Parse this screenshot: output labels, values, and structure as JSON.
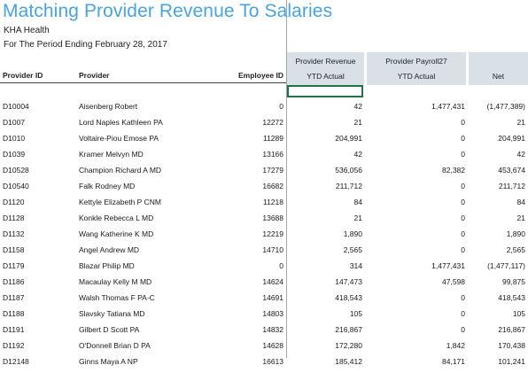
{
  "report": {
    "title": "Matching Provider Revenue To Salaries",
    "org": "KHA Health",
    "period": "For The Period Ending February 28, 2017"
  },
  "headers": {
    "provider_id": "Provider ID",
    "provider": "Provider",
    "employee_id": "Employee ID",
    "revenue_top": "Provider Revenue",
    "revenue_bottom": "YTD Actual",
    "payroll_top": "Provider Payroll27",
    "payroll_bottom": "YTD Actual",
    "net": "Net"
  },
  "rows": [
    {
      "id": "D10004",
      "name": "Aisenberg Robert",
      "emp": "0",
      "rev": "42",
      "pay": "1,477,431",
      "net": "(1,477,389)"
    },
    {
      "id": "D1007",
      "name": "Lord Naples Kathleen PA",
      "emp": "12272",
      "rev": "21",
      "pay": "0",
      "net": "21"
    },
    {
      "id": "D1010",
      "name": "Voltaire-Piou Emose PA",
      "emp": "11289",
      "rev": "204,991",
      "pay": "0",
      "net": "204,991"
    },
    {
      "id": "D1039",
      "name": "Kramer Melvyn MD",
      "emp": "13166",
      "rev": "42",
      "pay": "0",
      "net": "42"
    },
    {
      "id": "D10528",
      "name": "Champion Richard A MD",
      "emp": "17279",
      "rev": "536,056",
      "pay": "82,382",
      "net": "453,674"
    },
    {
      "id": "D10540",
      "name": "Falk Rodney MD",
      "emp": "16682",
      "rev": "211,712",
      "pay": "0",
      "net": "211,712"
    },
    {
      "id": "D1120",
      "name": "Kettyle Elizabeth P  CNM",
      "emp": "11218",
      "rev": "84",
      "pay": "0",
      "net": "84"
    },
    {
      "id": "D1128",
      "name": "Konkle Rebecca L MD",
      "emp": "13688",
      "rev": "21",
      "pay": "0",
      "net": "21"
    },
    {
      "id": "D1132",
      "name": "Wang Katherine K MD",
      "emp": "12219",
      "rev": "1,890",
      "pay": "0",
      "net": "1,890"
    },
    {
      "id": "D1158",
      "name": "Angel Andrew MD",
      "emp": "14710",
      "rev": "2,565",
      "pay": "0",
      "net": "2,565"
    },
    {
      "id": "D1179",
      "name": "Blazar Philip MD",
      "emp": "0",
      "rev": "314",
      "pay": "1,477,431",
      "net": "(1,477,117)"
    },
    {
      "id": "D1186",
      "name": "Macaulay Kelly M MD",
      "emp": "14624",
      "rev": "147,473",
      "pay": "47,598",
      "net": "99,875"
    },
    {
      "id": "D1187",
      "name": "Walsh Thomas F PA-C",
      "emp": "14691",
      "rev": "418,543",
      "pay": "0",
      "net": "418,543"
    },
    {
      "id": "D1188",
      "name": "Slavsky Tatiana MD",
      "emp": "14803",
      "rev": "105",
      "pay": "0",
      "net": "105"
    },
    {
      "id": "D1191",
      "name": "Gilbert D Scott PA",
      "emp": "14832",
      "rev": "216,867",
      "pay": "0",
      "net": "216,867"
    },
    {
      "id": "D1192",
      "name": "O'Donnell Brian D PA",
      "emp": "14628",
      "rev": "172,280",
      "pay": "1,842",
      "net": "170,438"
    },
    {
      "id": "D12148",
      "name": "Ginns Maya A NP",
      "emp": "16613",
      "rev": "185,412",
      "pay": "84,171",
      "net": "101,241"
    }
  ]
}
